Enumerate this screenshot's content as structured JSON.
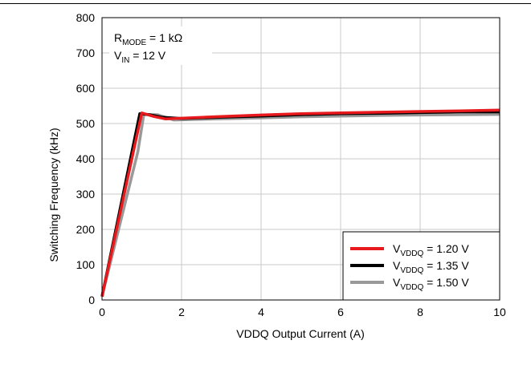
{
  "chart_data": {
    "type": "line",
    "xlabel": "VDDQ Output Current (A)",
    "ylabel": "Switching Frequency (kHz)",
    "xlim": [
      0,
      10
    ],
    "ylim": [
      0,
      800
    ],
    "xticks": [
      0,
      2,
      4,
      6,
      8,
      10
    ],
    "yticks": [
      0,
      100,
      200,
      300,
      400,
      500,
      600,
      700,
      800
    ],
    "grid": true,
    "annotations": [
      {
        "main": "R",
        "sub": "MODE",
        "rest": " = 1 kΩ"
      },
      {
        "main": "V",
        "sub": "IN",
        "rest": " = 12 V"
      }
    ],
    "legend_position": "bottom-right",
    "series": [
      {
        "name_main": "V",
        "name_sub": "VDDQ",
        "name_rest": " = 1.20 V",
        "color": "#e8191c",
        "x": [
          0,
          1.0,
          1.3,
          1.6,
          2,
          3,
          4,
          5,
          6,
          7,
          8,
          9,
          10
        ],
        "y": [
          10,
          530,
          520,
          513,
          515,
          520,
          524,
          528,
          530,
          532,
          534,
          536,
          538
        ]
      },
      {
        "name_main": "V",
        "name_sub": "VDDQ",
        "name_rest": " = 1.35 V",
        "color": "#000000",
        "x": [
          0,
          0.95,
          1.2,
          1.5,
          2,
          3,
          4,
          5,
          6,
          7,
          8,
          9,
          10
        ],
        "y": [
          10,
          528,
          525,
          518,
          514,
          518,
          521,
          525,
          528,
          529,
          531,
          533,
          533
        ]
      },
      {
        "name_main": "V",
        "name_sub": "VDDQ",
        "name_rest": " = 1.50 V",
        "color": "#999999",
        "x": [
          0,
          0.9,
          1.05,
          1.4,
          1.8,
          2.5,
          4,
          5,
          6,
          7,
          8,
          9,
          10
        ],
        "y": [
          10,
          420,
          525,
          525,
          510,
          512,
          516,
          519,
          521,
          523,
          524,
          525,
          526
        ]
      }
    ]
  }
}
